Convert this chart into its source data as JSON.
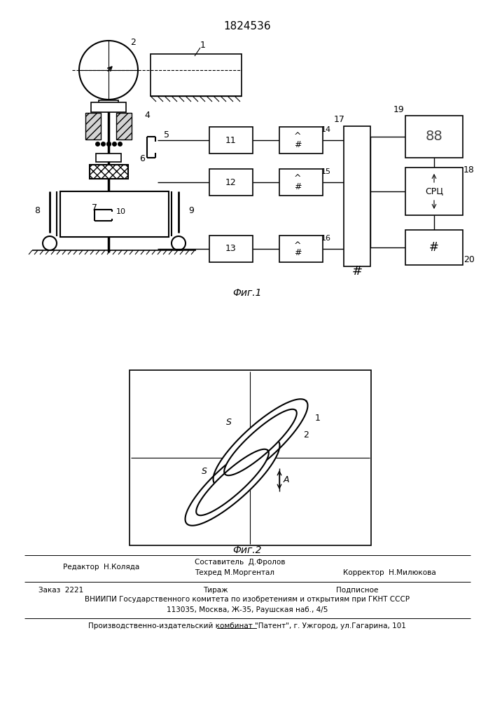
{
  "patent_number": "1824536",
  "fig1_label": "Фиг.1",
  "fig2_label": "Фиг.2",
  "footer_editor": "Редактор  Н.Коляда",
  "footer_compiler": "Составитель  Д.Фролов",
  "footer_techred": "Техред М.Моргентал",
  "footer_corrector": "Корректор  Н.Милюкова",
  "footer_order": "Заказ  2221",
  "footer_tirazh": "Тираж",
  "footer_podp": "Подписное",
  "footer_vniip1": "ВНИИПИ Государственного комитета по изобретениям и открытиям при ГКНТ СССР",
  "footer_vniip2": "113035, Москва, Ж-35, Раушская наб., 4/5",
  "footer_prod": "Производственно-издательский комбинат \"Патент\", г. Ужгород, ул.Гагарина, 101",
  "bg_color": "#ffffff",
  "fig_width": 7.07,
  "fig_height": 10.0
}
